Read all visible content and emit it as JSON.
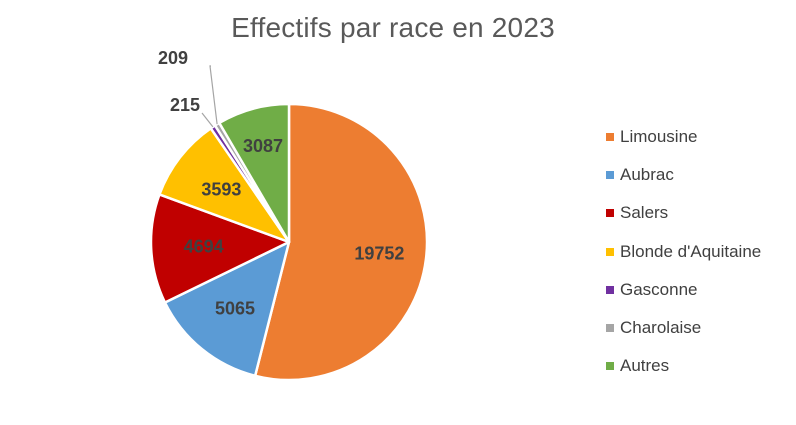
{
  "chart_data": {
    "type": "pie",
    "title": "Effectifs par race en 2023",
    "categories": [
      "Limousine",
      "Aubrac",
      "Salers",
      "Blonde d'Aquitaine",
      "Gasconne",
      "Charolaise",
      "Autres"
    ],
    "values": [
      19752,
      5065,
      4694,
      3593,
      215,
      209,
      3087
    ],
    "colors": [
      "#ED7D31",
      "#5B9BD5",
      "#C00000",
      "#FFC000",
      "#7030A0",
      "#A5A5A5",
      "#70AD47"
    ],
    "data_labels": [
      "19752",
      "5065",
      "4694",
      "3593",
      "215",
      "209",
      "3087"
    ],
    "legend_position": "right",
    "start": "12 o'clock",
    "direction": "clockwise"
  }
}
